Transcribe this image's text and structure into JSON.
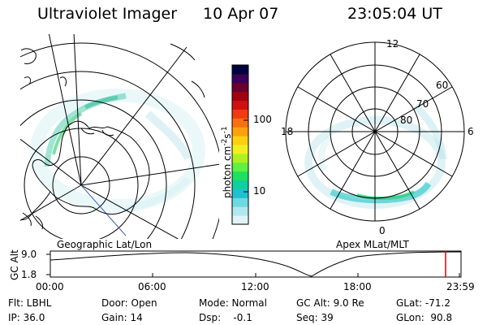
{
  "header": {
    "instrument": "Ultraviolet Imager",
    "date": "10 Apr 07",
    "time": "23:05:04 UT"
  },
  "left_map": {
    "caption": "Geographic Lat/Lon"
  },
  "right_map": {
    "caption": "Apex MLat/MLT",
    "mlt_labels": {
      "top": "12",
      "left": "18",
      "right": "6",
      "bottom": "0"
    },
    "lat_labels": [
      "60",
      "70",
      "80"
    ]
  },
  "colorbar": {
    "unit_label": "photon cm",
    "exp1": "-2",
    "s_label": "s",
    "exp2": "-1",
    "ticks": [
      "100",
      "10"
    ],
    "colors": [
      "#000040",
      "#3a005a",
      "#6a0030",
      "#a00010",
      "#d01010",
      "#f03a10",
      "#f87010",
      "#ffa010",
      "#ffd010",
      "#f0f020",
      "#b0f020",
      "#60f040",
      "#20e060",
      "#10d0a0",
      "#20c0d0",
      "#70d8e0",
      "#b0e8f0",
      "#e0f4f8"
    ]
  },
  "altitude_bar": {
    "ylabel": "GC Alt",
    "y_max": "9.0",
    "y_min": "1.8",
    "time_ticks": [
      "00:00",
      "06:00",
      "12:00",
      "18:00",
      "23:59"
    ],
    "marker_color": "#e00000"
  },
  "footer": {
    "row1": {
      "filter": "Flt: LBHL",
      "door": "Door: Open",
      "mode": "Mode: Normal",
      "gc_alt": "GC Alt: 9.0 Re",
      "glat": "GLat: -71.2"
    },
    "row2": {
      "ip": "IP: 36.0",
      "gain": "Gain: 14",
      "dsp": "Dsp:    -0.1",
      "seq": "Seq: 39",
      "glon": "GLon:  90.8"
    }
  }
}
